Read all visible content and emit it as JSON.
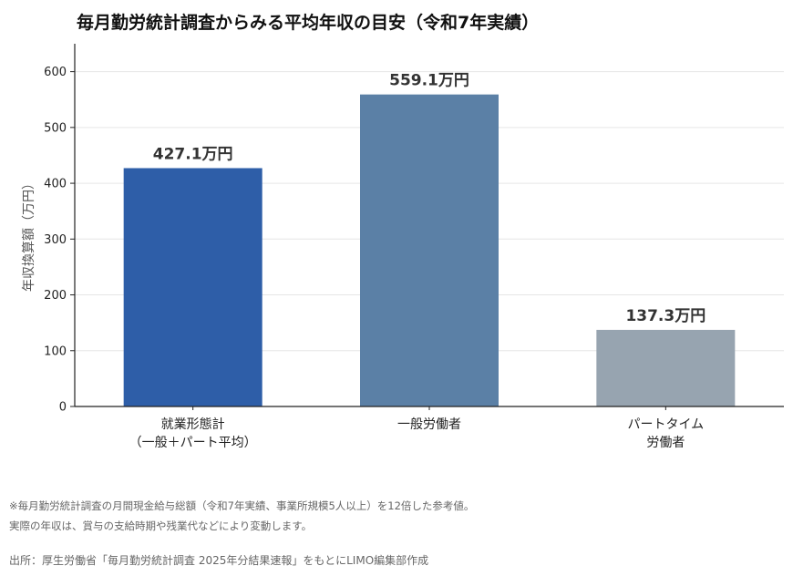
{
  "chart_data": {
    "type": "bar",
    "title": "毎月勤労統計調査からみる平均年収の目安（令和7年実績）",
    "ylabel": "年収換算額（万円）",
    "xlabel": "",
    "ylim": [
      0,
      650
    ],
    "yticks": [
      0,
      100,
      200,
      300,
      400,
      500,
      600
    ],
    "grid": true,
    "categories": [
      [
        "就業形態計",
        "（一般＋パート平均）"
      ],
      [
        "一般労働者"
      ],
      [
        "パートタイム",
        "労働者"
      ]
    ],
    "values": [
      427.1,
      559.1,
      137.3
    ],
    "data_labels": [
      "427.1万円",
      "559.1万円",
      "137.3万円"
    ],
    "colors": [
      "#2e5ea8",
      "#5b80a6",
      "#97a4b0"
    ]
  },
  "notes": [
    "※毎月勤労統計調査の月間現金給与総額（令和7年実績、事業所規模5人以上）を12倍した参考値。",
    "実際の年収は、賞与の支給時期や残業代などにより変動します。"
  ],
  "source": "出所：厚生労働省「毎月勤労統計調査 2025年分結果速報」をもとにLIMO編集部作成"
}
